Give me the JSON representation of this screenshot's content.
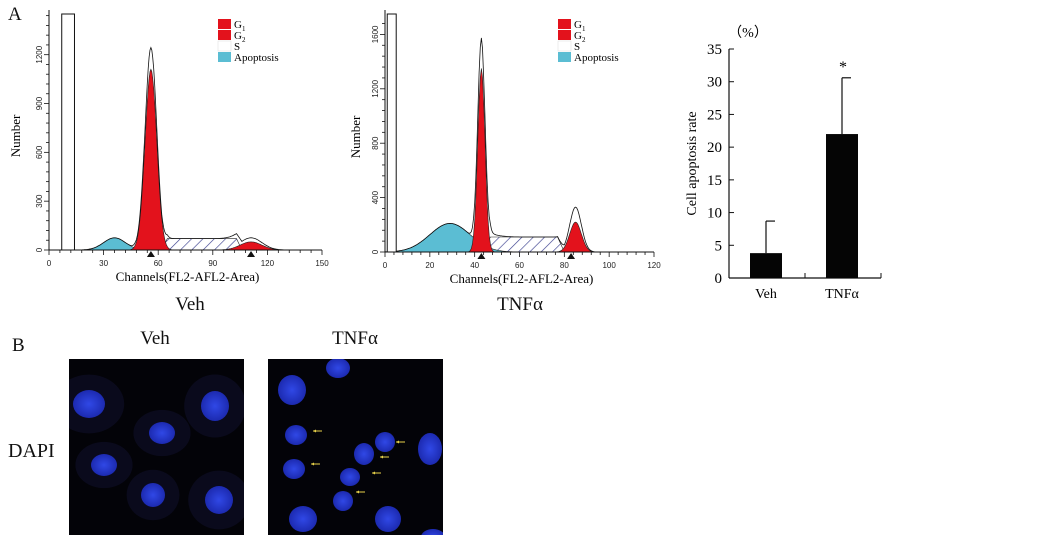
{
  "panel_a": {
    "letter": "A",
    "histograms": [
      {
        "caption": "Veh",
        "ylabel": "Number",
        "xlabel": "Channels(FL2-AFL2-Area)",
        "xticks": [
          "0",
          "30",
          "60",
          "90",
          "120",
          "150"
        ],
        "yticks": [
          "0",
          "300",
          "600",
          "900",
          "1200"
        ],
        "xlim": [
          0,
          150
        ],
        "ylim": [
          0,
          1450
        ],
        "legend": [
          {
            "label": "G",
            "sub": "1",
            "color": "#e3121c"
          },
          {
            "label": "G",
            "sub": "2",
            "color": "#e3121c"
          },
          {
            "label": "S",
            "sub": "",
            "color": "#ffffff"
          },
          {
            "label": "Apoptosis",
            "sub": "",
            "color": "#5bbdd3"
          }
        ],
        "peaks": {
          "g1_channel": 56,
          "g2_channel": 111
        }
      },
      {
        "caption": "TNFα",
        "ylabel": "Number",
        "xlabel": "Channels(FL2-AFL2-Area)",
        "xticks": [
          "0",
          "20",
          "40",
          "60",
          "80",
          "100",
          "120"
        ],
        "yticks": [
          "0",
          "400",
          "800",
          "1200",
          "1600"
        ],
        "xlim": [
          0,
          120
        ],
        "ylim": [
          0,
          1750
        ],
        "legend": [
          {
            "label": "G",
            "sub": "1",
            "color": "#e3121c"
          },
          {
            "label": "G",
            "sub": "2",
            "color": "#e3121c"
          },
          {
            "label": "S",
            "sub": "",
            "color": "#ffffff"
          },
          {
            "label": "Apoptosis",
            "sub": "",
            "color": "#5bbdd3"
          }
        ],
        "peaks": {
          "g1_channel": 43,
          "g2_channel": 83
        }
      }
    ]
  },
  "chart_data": [
    {
      "type": "bar",
      "title": "",
      "unit_label": "（%）",
      "ylabel": "Cell apoptosis rate",
      "xlabel": "",
      "categories": [
        "Veh",
        "TNFα"
      ],
      "values": [
        3.8,
        22.0
      ],
      "error_upper": [
        8.7,
        30.6
      ],
      "annotations": [
        "",
        "*"
      ],
      "yticks": [
        "0",
        "5",
        "10",
        "15",
        "20",
        "25",
        "30",
        "35"
      ],
      "ylim": [
        0,
        35
      ],
      "grid": false
    }
  ],
  "panel_b": {
    "letter": "B",
    "row_label": "DAPI",
    "columns": [
      "Veh",
      "TNFα"
    ],
    "nucleus_color": "#2a3fd8",
    "arrow_color": "#e8d24a"
  }
}
